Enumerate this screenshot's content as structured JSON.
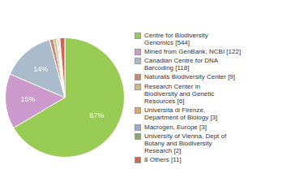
{
  "chart_data": {
    "type": "pie",
    "categories": [
      "Centre for Biodiversity\nGenomics [544]",
      "Mined from GenBank, NCBI [122]",
      "Canadian Centre for DNA\nBarcoding [118]",
      "Naturalis Biodiversity Center [9]",
      "Research Center in\nBiodiversity and Genetic\nResources [6]",
      "Universita di Firenze,\nDepartment of Biology [3]",
      "Macrogen, Europe [3]",
      "University of Vienna, Dept of\nBotany and Biodiversity\nResearch [2]",
      "8 Others [11]"
    ],
    "values": [
      66.504,
      14.914,
      14.425,
      1.1,
      0.733,
      0.367,
      0.367,
      0.244,
      1.345
    ],
    "value_labels": [
      "67%",
      "15%",
      "14%",
      null,
      null,
      null,
      null,
      null,
      null
    ],
    "colors": [
      "#99cc55",
      "#cc99cc",
      "#aabbcc",
      "#cc8877",
      "#ccbb88",
      "#ddaa66",
      "#99aacc",
      "#88aa66",
      "#cc6655"
    ],
    "data_labels": true,
    "legend": "right"
  }
}
